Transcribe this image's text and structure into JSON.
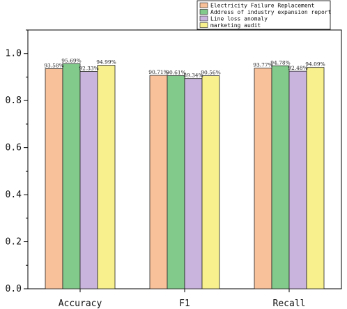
{
  "chart_data": {
    "type": "bar",
    "title": "",
    "xlabel": "",
    "ylabel": "",
    "categories": [
      "Accuracy",
      "F1",
      "Recall"
    ],
    "ylim": [
      0,
      1.1
    ],
    "yticks": [
      "0.0",
      "0.2",
      "0.4",
      "0.6",
      "0.8",
      "1.0"
    ],
    "legend_position": "top-right",
    "grid": false,
    "series": [
      {
        "name": "Electricity Failure Replacement",
        "color": "#f9c199",
        "values": [
          0.9358,
          0.9071,
          0.9377
        ],
        "labels": [
          "93.58%",
          "90.71%",
          "93.77%"
        ]
      },
      {
        "name": "Address of industry expansion report",
        "color": "#82c98c",
        "values": [
          0.9569,
          0.9061,
          0.9478
        ],
        "labels": [
          "95.69%",
          "90.61%",
          "94.78%"
        ]
      },
      {
        "name": "Line loss anomaly",
        "color": "#c8b4dd",
        "values": [
          0.9233,
          0.8934,
          0.9248
        ],
        "labels": [
          "92.33%",
          "89.34%",
          "92.48%"
        ]
      },
      {
        "name": "marketing audit",
        "color": "#f7f08d",
        "values": [
          0.9499,
          0.9056,
          0.9409
        ],
        "labels": [
          "94.99%",
          "90.56%",
          "94.09%"
        ]
      }
    ]
  }
}
